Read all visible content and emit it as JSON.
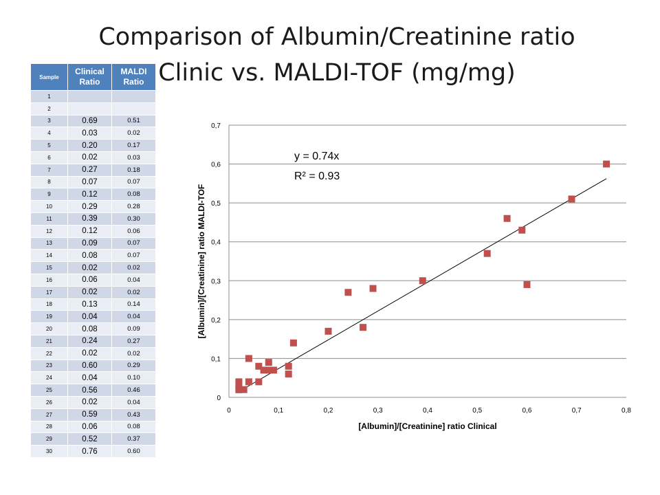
{
  "slide": {
    "title_line1": "Comparison of Albumin/Creatinine ratio",
    "title_line2": "Clinic vs. MALDI-TOF (mg/mg)"
  },
  "table": {
    "headers": [
      "Sample",
      "Clinical Ratio",
      "MALDI Ratio"
    ],
    "rows": [
      [
        "1",
        "",
        ""
      ],
      [
        "2",
        "",
        ""
      ],
      [
        "3",
        "0.69",
        "0.51"
      ],
      [
        "4",
        "0.03",
        "0.02"
      ],
      [
        "5",
        "0.20",
        "0.17"
      ],
      [
        "6",
        "0.02",
        "0.03"
      ],
      [
        "7",
        "0.27",
        "0.18"
      ],
      [
        "8",
        "0.07",
        "0.07"
      ],
      [
        "9",
        "0.12",
        "0.08"
      ],
      [
        "10",
        "0.29",
        "0.28"
      ],
      [
        "11",
        "0.39",
        "0.30"
      ],
      [
        "12",
        "0.12",
        "0.06"
      ],
      [
        "13",
        "0.09",
        "0.07"
      ],
      [
        "14",
        "0.08",
        "0.07"
      ],
      [
        "15",
        "0.02",
        "0.02"
      ],
      [
        "16",
        "0.06",
        "0.04"
      ],
      [
        "17",
        "0.02",
        "0.02"
      ],
      [
        "18",
        "0.13",
        "0.14"
      ],
      [
        "19",
        "0.04",
        "0.04"
      ],
      [
        "20",
        "0.08",
        "0.09"
      ],
      [
        "21",
        "0.24",
        "0.27"
      ],
      [
        "22",
        "0.02",
        "0.02"
      ],
      [
        "23",
        "0.60",
        "0.29"
      ],
      [
        "24",
        "0.04",
        "0.10"
      ],
      [
        "25",
        "0.56",
        "0.46"
      ],
      [
        "26",
        "0.02",
        "0.04"
      ],
      [
        "27",
        "0.59",
        "0.43"
      ],
      [
        "28",
        "0.06",
        "0.08"
      ],
      [
        "29",
        "0.52",
        "0.37"
      ],
      [
        "30",
        "0.76",
        "0.60"
      ]
    ]
  },
  "chart_data": {
    "type": "scatter",
    "xlabel": "[Albumin]/[Creatinine] ratio Clinical",
    "ylabel": "[Albumin]/[Creatinine] ratio MALDI-TOF",
    "xlim": [
      0,
      0.8
    ],
    "ylim": [
      0,
      0.7
    ],
    "x_ticks": [
      0,
      0.1,
      0.2,
      0.3,
      0.4,
      0.5,
      0.6,
      0.7,
      0.8
    ],
    "x_tick_labels": [
      "0",
      "0,1",
      "0,2",
      "0,3",
      "0,4",
      "0,5",
      "0,6",
      "0,7",
      "0,8"
    ],
    "y_ticks": [
      0,
      0.1,
      0.2,
      0.3,
      0.4,
      0.5,
      0.6,
      0.7
    ],
    "y_tick_labels": [
      "0",
      "0,1",
      "0,2",
      "0,3",
      "0,4",
      "0,5",
      "0,6",
      "0,7"
    ],
    "grid": "horizontal",
    "marker_color": "#c0504d",
    "points": [
      [
        0.69,
        0.51
      ],
      [
        0.03,
        0.02
      ],
      [
        0.2,
        0.17
      ],
      [
        0.02,
        0.03
      ],
      [
        0.27,
        0.18
      ],
      [
        0.07,
        0.07
      ],
      [
        0.12,
        0.08
      ],
      [
        0.29,
        0.28
      ],
      [
        0.39,
        0.3
      ],
      [
        0.12,
        0.06
      ],
      [
        0.09,
        0.07
      ],
      [
        0.08,
        0.07
      ],
      [
        0.02,
        0.02
      ],
      [
        0.06,
        0.04
      ],
      [
        0.02,
        0.02
      ],
      [
        0.13,
        0.14
      ],
      [
        0.04,
        0.04
      ],
      [
        0.08,
        0.09
      ],
      [
        0.24,
        0.27
      ],
      [
        0.02,
        0.02
      ],
      [
        0.6,
        0.29
      ],
      [
        0.04,
        0.1
      ],
      [
        0.56,
        0.46
      ],
      [
        0.02,
        0.04
      ],
      [
        0.59,
        0.43
      ],
      [
        0.06,
        0.08
      ],
      [
        0.52,
        0.37
      ],
      [
        0.76,
        0.6
      ]
    ],
    "trendline": {
      "slope": 0.74,
      "x_range": [
        0.02,
        0.76
      ]
    },
    "annotations": [
      "y = 0.74x",
      "R² = 0.93"
    ]
  }
}
